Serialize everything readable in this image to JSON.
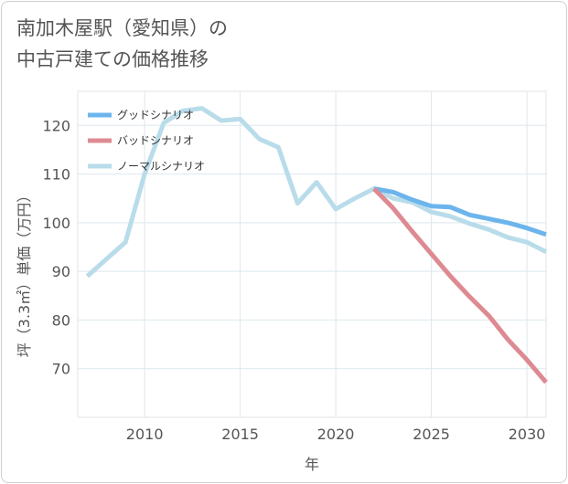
{
  "title_line1": "南加木屋駅（愛知県）の",
  "title_line2": "中古戸建ての価格推移",
  "chart_data": {
    "type": "line",
    "title": "南加木屋駅（愛知県）の中古戸建ての価格推移",
    "xlabel": "年",
    "ylabel": "坪（3.3㎡）単価（万円）",
    "xlim": [
      2006.5,
      2031
    ],
    "ylim": [
      60,
      127
    ],
    "xticks": [
      2010,
      2015,
      2020,
      2025,
      2030
    ],
    "yticks": [
      70,
      80,
      90,
      100,
      110,
      120
    ],
    "legend_position": "top-left",
    "series": [
      {
        "name": "ノーマルシナリオ",
        "color": "#b9dcea",
        "points": [
          [
            2007,
            89
          ],
          [
            2008,
            92.5
          ],
          [
            2009,
            96
          ],
          [
            2010,
            110
          ],
          [
            2011,
            120.5
          ],
          [
            2012,
            123
          ],
          [
            2013,
            123.5
          ],
          [
            2014,
            121
          ],
          [
            2015,
            121.3
          ],
          [
            2016,
            117.2
          ],
          [
            2017,
            115.5
          ],
          [
            2018,
            104
          ],
          [
            2019,
            108.3
          ],
          [
            2020,
            102.8
          ],
          [
            2021,
            105
          ],
          [
            2022,
            107
          ],
          [
            2023,
            105
          ],
          [
            2024,
            104.2
          ],
          [
            2025,
            102.2
          ],
          [
            2026,
            101.3
          ],
          [
            2027,
            99.8
          ],
          [
            2028,
            98.6
          ],
          [
            2029,
            97
          ],
          [
            2030,
            96
          ],
          [
            2031,
            94
          ]
        ]
      },
      {
        "name": "グッドシナリオ",
        "color": "#6cb5ec",
        "points": [
          [
            2022,
            107
          ],
          [
            2023,
            106.3
          ],
          [
            2024,
            104.7
          ],
          [
            2025,
            103.4
          ],
          [
            2026,
            103.2
          ],
          [
            2027,
            101.6
          ],
          [
            2028,
            100.8
          ],
          [
            2029,
            100
          ],
          [
            2030,
            98.9
          ],
          [
            2031,
            97.6
          ]
        ]
      },
      {
        "name": "バッドシナリオ",
        "color": "#de8a92",
        "points": [
          [
            2022,
            107
          ],
          [
            2023,
            103
          ],
          [
            2024,
            98.2
          ],
          [
            2025,
            93.6
          ],
          [
            2026,
            89
          ],
          [
            2027,
            84.8
          ],
          [
            2028,
            80.9
          ],
          [
            2029,
            76
          ],
          [
            2030,
            71.8
          ],
          [
            2031,
            67.2
          ]
        ]
      }
    ],
    "legend": [
      {
        "name": "グッドシナリオ",
        "color": "#6cb5ec"
      },
      {
        "name": "バッドシナリオ",
        "color": "#de8a92"
      },
      {
        "name": "ノーマルシナリオ",
        "color": "#b9dcea"
      }
    ]
  }
}
